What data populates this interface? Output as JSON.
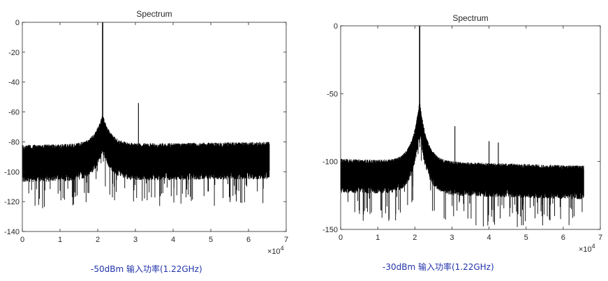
{
  "chart_data": [
    {
      "type": "line",
      "title": "Spectrum",
      "xlabel": "",
      "ylabel": "",
      "xlim": [
        0,
        70000
      ],
      "ylim": [
        -140,
        0
      ],
      "x_ticks": [
        0,
        10000,
        20000,
        30000,
        40000,
        50000,
        60000,
        70000
      ],
      "x_tick_labels": [
        "0",
        "1",
        "2",
        "3",
        "4",
        "5",
        "6",
        "7"
      ],
      "x_exponent_label": "×10",
      "x_exponent_power": "4",
      "y_ticks": [
        0,
        -20,
        -40,
        -60,
        -80,
        -100,
        -120,
        -140
      ],
      "y_tick_labels": [
        "0",
        "-20",
        "-40",
        "-60",
        "-80",
        "-100",
        "-120",
        "-140"
      ],
      "grid": false,
      "line_color": "#000000",
      "x_max": 65536,
      "noise_floor_db": -92,
      "noise_spread_db": 10,
      "deep_dip_db": -125,
      "noise_floor_tilt_db": 2,
      "skirt_height_db": 20,
      "skirt_width": 2200,
      "peaks": [
        {
          "x": 21300,
          "value": 0
        },
        {
          "x": 30800,
          "value": -54
        }
      ],
      "caption": "-50dBm 输入功率(1.22GHz)"
    },
    {
      "type": "line",
      "title": "Spectrum",
      "xlabel": "",
      "ylabel": "",
      "xlim": [
        0,
        70000
      ],
      "ylim": [
        -150,
        0
      ],
      "x_ticks": [
        0,
        10000,
        20000,
        30000,
        40000,
        50000,
        60000,
        70000
      ],
      "x_tick_labels": [
        "0",
        "1",
        "2",
        "3",
        "4",
        "5",
        "6",
        "7"
      ],
      "x_exponent_label": "×10",
      "x_exponent_power": "4",
      "y_ticks": [
        0,
        -50,
        -100,
        -150
      ],
      "y_tick_labels": [
        "0",
        "-50",
        "-100",
        "-150"
      ],
      "grid": false,
      "line_color": "#000000",
      "x_max": 65536,
      "noise_floor_db": -108,
      "noise_spread_db": 10,
      "deep_dip_db": -145,
      "noise_floor_tilt_db": -5,
      "skirt_height_db": 45,
      "skirt_width": 2000,
      "peaks": [
        {
          "x": 21300,
          "value": 0
        },
        {
          "x": 30800,
          "value": -74
        },
        {
          "x": 40000,
          "value": -85
        },
        {
          "x": 42500,
          "value": -86
        }
      ],
      "caption": "-30dBm 输入功率(1.22GHz)"
    }
  ]
}
